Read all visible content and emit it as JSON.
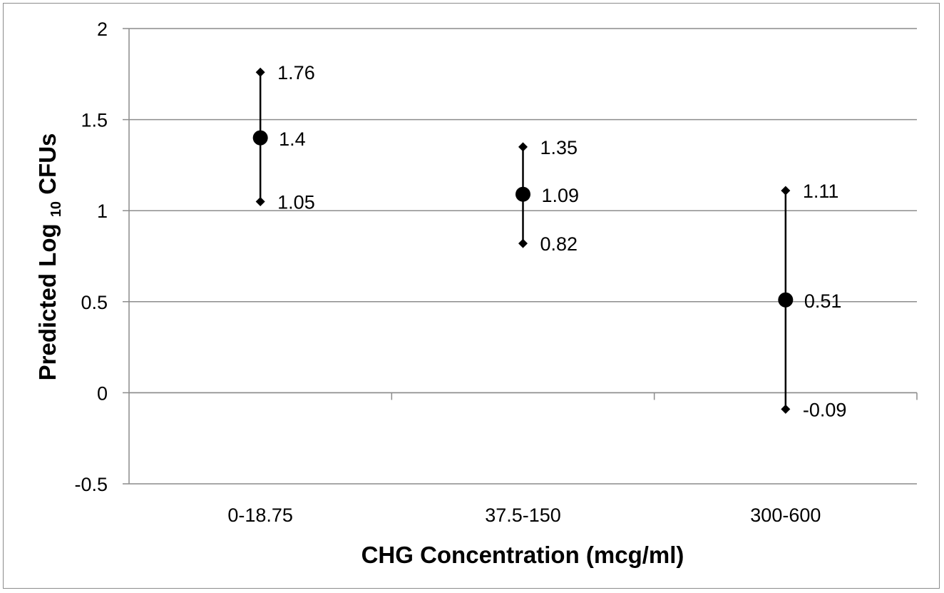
{
  "chart_data": {
    "type": "scatter",
    "subtype": "error-bar",
    "title": "",
    "xlabel": "CHG Concentration (mcg/ml)",
    "ylabel": {
      "prefix": "Predicted Log ",
      "subscript": "10",
      "suffix": " CFUs"
    },
    "categories": [
      "0-18.75",
      "37.5-150",
      "300-600"
    ],
    "ylim": [
      -0.5,
      2
    ],
    "yticks": [
      "2",
      "1.5",
      "1",
      "0.5",
      "0",
      "-0.5"
    ],
    "ytick_values": [
      2,
      1.5,
      1,
      0.5,
      0,
      -0.5
    ],
    "grid": true,
    "series": [
      {
        "estimate": [
          1.4,
          1.09,
          0.51
        ],
        "upper": [
          1.76,
          1.35,
          1.11
        ],
        "lower": [
          1.05,
          0.82,
          -0.09
        ],
        "estimate_labels": [
          "1.4",
          "1.09",
          "0.51"
        ],
        "upper_labels": [
          "1.76",
          "1.35",
          "1.11"
        ],
        "lower_labels": [
          "1.05",
          "0.82",
          "-0.09"
        ]
      }
    ],
    "colors": {
      "marker": "#000000",
      "grid": "#8c8c8c",
      "frame": "#8c8c8c"
    }
  }
}
